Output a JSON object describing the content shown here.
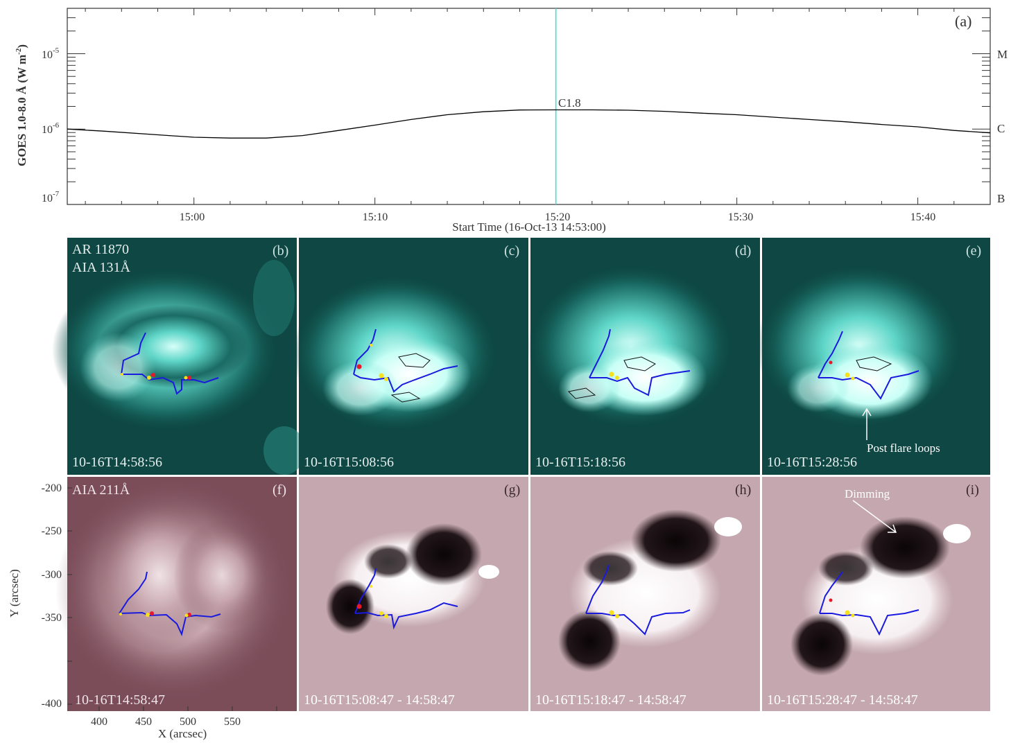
{
  "goes_panel": {
    "panel_label": "(a)",
    "ylabel": "GOES 1.0-8.0 Å (W m",
    "ylabel_sup": "-2",
    "ylabel_end": ")",
    "xlabel": "Start Time (16-Oct-13 14:53:00)",
    "ytick_labels": [
      {
        "base": "10",
        "exp": "-5"
      },
      {
        "base": "10",
        "exp": "-6"
      },
      {
        "base": "10",
        "exp": "-7"
      }
    ],
    "class_labels": [
      "M",
      "C",
      "B"
    ],
    "peak_annotation": "C1.8",
    "marker_color": "#40e0d0"
  },
  "chart_data": {
    "type": "line",
    "title": "",
    "xlabel": "Start Time (16-Oct-13 14:53:00)",
    "ylabel": "GOES 1.0-8.0 Å (W m-2)",
    "yscale": "log",
    "ylim": [
      1e-07,
      4e-05
    ],
    "xlim_minutes_after_1500": [
      -7,
      44
    ],
    "x_tick_labels": [
      "15:00",
      "15:10",
      "15:20",
      "15:30",
      "15:40"
    ],
    "x_tick_minutes": [
      0,
      10,
      20,
      30,
      40
    ],
    "series": [
      {
        "x_minutes_after_1500": [
          -7,
          -5,
          -2,
          0,
          2,
          4,
          6,
          8,
          10,
          12,
          14,
          16,
          18,
          20,
          22,
          24,
          26,
          28,
          30,
          32,
          34,
          36,
          38,
          40,
          42,
          44
        ],
        "y": [
          1e-06,
          9.4e-07,
          8.4e-07,
          7.8e-07,
          7.6e-07,
          7.6e-07,
          8.2e-07,
          9.6e-07,
          1.13e-06,
          1.34e-06,
          1.55e-06,
          1.7e-06,
          1.79e-06,
          1.8e-06,
          1.8e-06,
          1.78e-06,
          1.72e-06,
          1.63e-06,
          1.55e-06,
          1.44e-06,
          1.34e-06,
          1.25e-06,
          1.15e-06,
          1.07e-06,
          9.6e-07,
          8.9e-07
        ],
        "color": "#000000"
      }
    ],
    "vertical_marker_minutes_after_1500": 20,
    "annotation": {
      "text": "C1.8",
      "x_minutes_after_1500": 20,
      "y": 1.8e-06
    }
  },
  "aia_131": {
    "title_lines": [
      "AR 11870",
      "AIA 131Å"
    ],
    "panels": [
      {
        "label": "(b)",
        "time": "10-16T14:58:56"
      },
      {
        "label": "(c)",
        "time": "10-16T15:08:56"
      },
      {
        "label": "(d)",
        "time": "10-16T15:18:56"
      },
      {
        "label": "(e)",
        "time": "10-16T15:28:56"
      }
    ],
    "annotation": "Post flare loops",
    "tint": "#0d4a46",
    "bright": "#b8fff4"
  },
  "aia_211": {
    "title": "AIA 211Å",
    "panels": [
      {
        "label": "(f)",
        "time": "10-16T14:58:47"
      },
      {
        "label": "(g)",
        "time": "10-16T15:08:47 - 14:58:47"
      },
      {
        "label": "(h)",
        "time": "10-16T15:18:47 - 14:58:47"
      },
      {
        "label": "(i)",
        "time": "10-16T15:28:47 - 14:58:47"
      }
    ],
    "annotation": "Dimming",
    "ylabel": "Y (arcsec)",
    "xlabel": "X (arcsec)",
    "ytick_labels": [
      "-200",
      "-250",
      "-300",
      "-350",
      "-400"
    ],
    "xtick_labels": [
      "400",
      "450",
      "500",
      "550"
    ],
    "tint": "#c7aab2"
  },
  "overlay_colors": {
    "polarity_line": "#1a1adf",
    "marker_red": "#e8182a",
    "marker_yellow": "#f5e11c"
  }
}
